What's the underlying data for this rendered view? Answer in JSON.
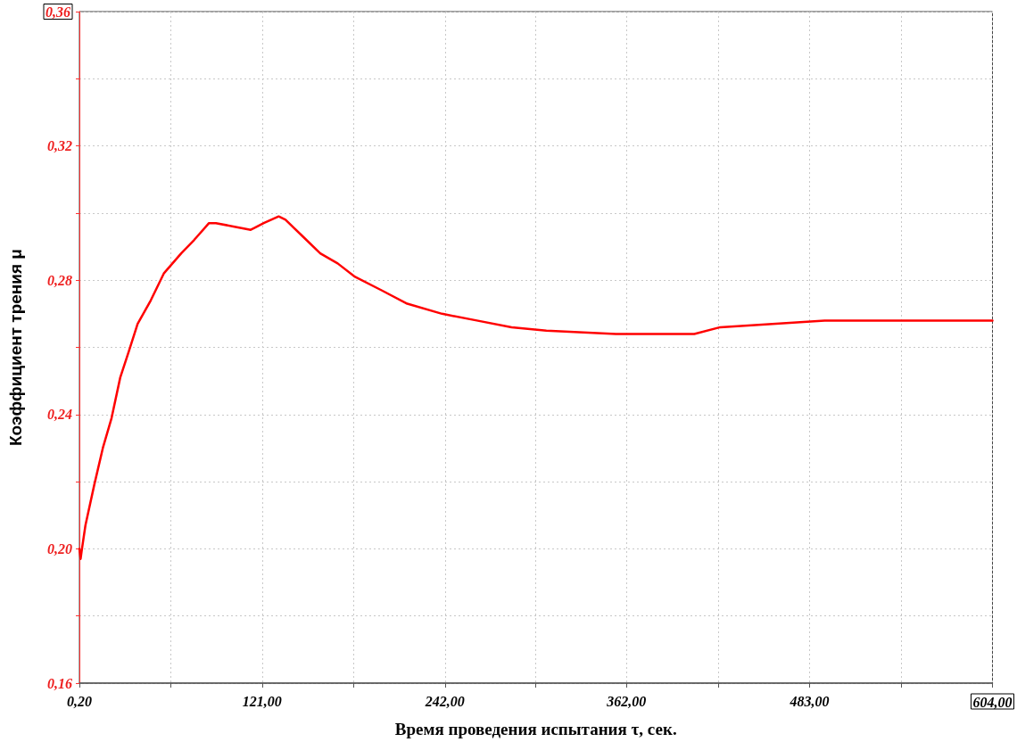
{
  "chart_data": {
    "type": "line",
    "xlabel": "Время проведения испытания τ, сек.",
    "ylabel": "Коэффициент трения μ",
    "xlim": [
      0.2,
      604
    ],
    "ylim": [
      0.16,
      0.36
    ],
    "xticks": [
      {
        "value": 0.2,
        "label": "0,20"
      },
      {
        "value": 60.6,
        "label": null
      },
      {
        "value": 121,
        "label": "121,00"
      },
      {
        "value": 181.5,
        "label": null
      },
      {
        "value": 242,
        "label": "242,00"
      },
      {
        "value": 302,
        "label": null
      },
      {
        "value": 362,
        "label": "362,00"
      },
      {
        "value": 422.5,
        "label": null
      },
      {
        "value": 483,
        "label": "483,00"
      },
      {
        "value": 543.5,
        "label": null
      },
      {
        "value": 604,
        "label": "604,00"
      }
    ],
    "yticks": [
      {
        "value": 0.16,
        "label": "0,16"
      },
      {
        "value": 0.18,
        "label": null
      },
      {
        "value": 0.2,
        "label": "0,20"
      },
      {
        "value": 0.22,
        "label": null
      },
      {
        "value": 0.24,
        "label": "0,24"
      },
      {
        "value": 0.26,
        "label": null
      },
      {
        "value": 0.28,
        "label": "0,28"
      },
      {
        "value": 0.3,
        "label": null
      },
      {
        "value": 0.32,
        "label": "0,32"
      },
      {
        "value": 0.34,
        "label": null
      },
      {
        "value": 0.36,
        "label": "0,36"
      }
    ],
    "grid": true,
    "marker": "none",
    "line_style": "solid",
    "x": [
      0.2,
      1,
      1.9,
      4.2,
      10,
      15.7,
      21.5,
      27.2,
      33,
      38.7,
      47.4,
      56,
      67.5,
      76.1,
      85.9,
      90.5,
      102,
      113.5,
      122.1,
      132,
      136.5,
      148,
      159.5,
      171,
      182.5,
      200,
      217,
      240,
      263,
      286,
      309,
      355,
      389.5,
      406.8,
      424,
      458.5,
      493,
      527.5,
      562,
      604
    ],
    "series": [
      {
        "color": "#ff0000",
        "values": [
          0.2,
          0.197,
          0.2,
          0.207,
          0.219,
          0.23,
          0.239,
          0.251,
          0.259,
          0.267,
          0.274,
          0.282,
          0.288,
          0.292,
          0.297,
          0.297,
          0.296,
          0.295,
          0.297,
          0.299,
          0.298,
          0.293,
          0.288,
          0.285,
          0.281,
          0.277,
          0.273,
          0.27,
          0.268,
          0.266,
          0.265,
          0.264,
          0.264,
          0.264,
          0.266,
          0.267,
          0.268,
          0.268,
          0.268,
          0.268
        ]
      }
    ]
  }
}
